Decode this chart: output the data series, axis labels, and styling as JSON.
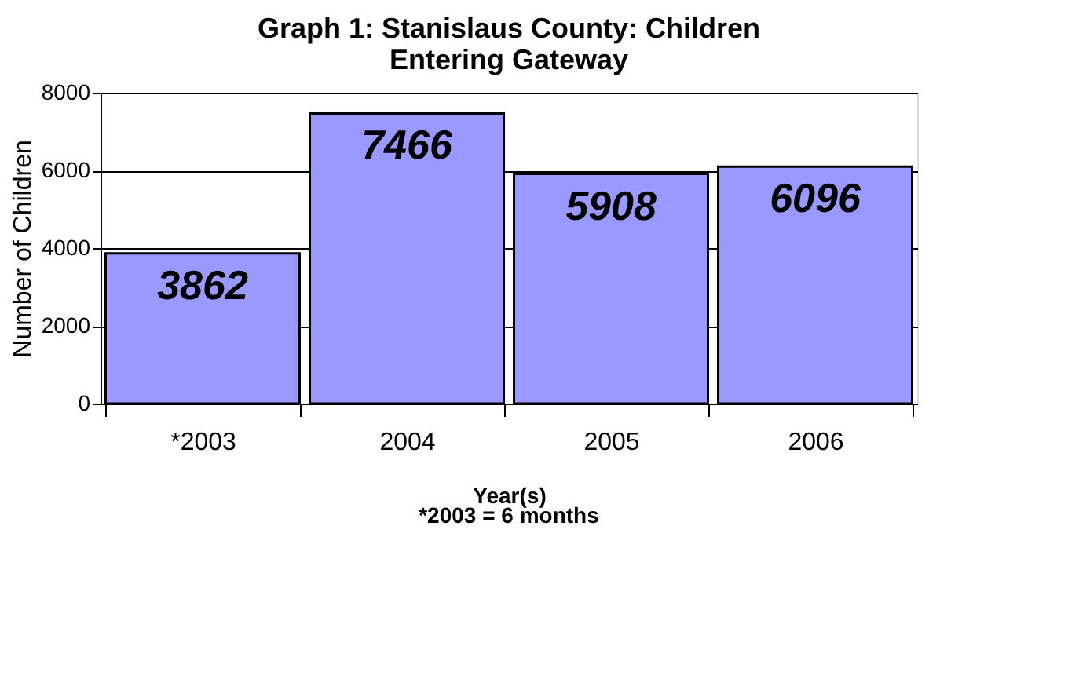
{
  "chart_data": {
    "type": "bar",
    "title": "Graph 1:  Stanislaus County:  Children\nEntering Gateway",
    "categories": [
      "*2003",
      "2004",
      "2005",
      "2006"
    ],
    "values": [
      3862,
      7466,
      5908,
      6096
    ],
    "color": "#9999ff",
    "xlabel": "Year(s)",
    "ylabel": "Number of Children",
    "annotations": [
      "*2003 = 6 months"
    ],
    "ylim": [
      0,
      8000
    ],
    "yticks": [
      0,
      2000,
      4000,
      6000,
      8000
    ],
    "grid": "y",
    "data_labels": true
  }
}
